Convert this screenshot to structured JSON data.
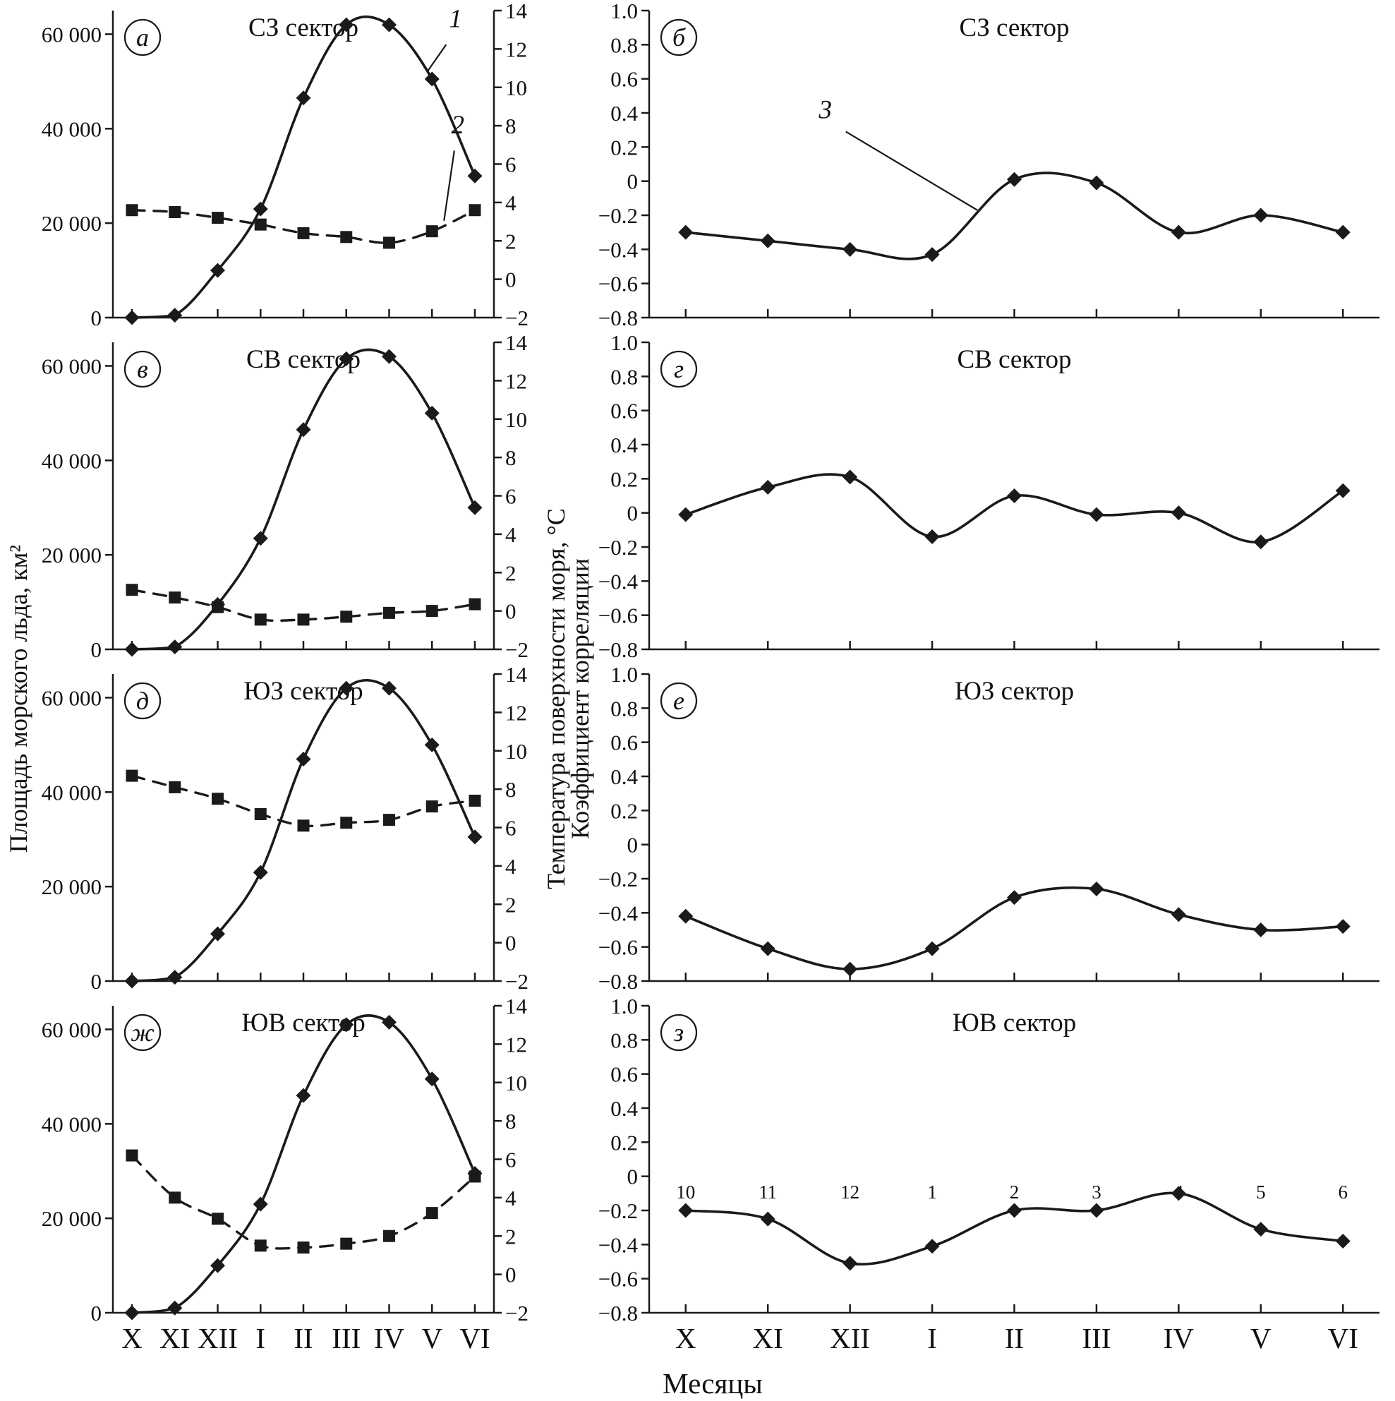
{
  "figure": {
    "left_axis_label": "Площадь морского льда, км²",
    "right_axis_label": "Температура поверхности моря, °C",
    "corr_axis_label": "Коэффициент корреляции",
    "x_axis_label": "Месяцы",
    "ink_color": "#1a1a1a"
  },
  "months": [
    "X",
    "XI",
    "XII",
    "I",
    "II",
    "III",
    "IV",
    "V",
    "VI"
  ],
  "chart_data": [
    {
      "type": "line",
      "panel": "а",
      "title": "СЗ сектор",
      "column": "left",
      "show_x_labels": false,
      "categories": [
        "X",
        "XI",
        "XII",
        "I",
        "II",
        "III",
        "IV",
        "V",
        "VI"
      ],
      "y_left": {
        "min": 0,
        "max": 65000,
        "ticks": [
          0,
          20000,
          40000,
          60000
        ],
        "tick_labels": [
          "0",
          "20 000",
          "40 000",
          "60 000"
        ]
      },
      "y_right": {
        "min": -2,
        "max": 14,
        "ticks": [
          14,
          12,
          10,
          8,
          6,
          4,
          2,
          0,
          -2
        ],
        "tick_labels": [
          "14",
          "12",
          "10",
          "8",
          "6",
          "4",
          "2",
          "0",
          "−2"
        ]
      },
      "series": [
        {
          "name": "1",
          "axis": "left",
          "marker": "diamond",
          "line": "solid",
          "values": [
            0,
            500,
            10000,
            23000,
            46500,
            62000,
            62000,
            50500,
            30000
          ]
        },
        {
          "name": "2",
          "axis": "right",
          "marker": "square",
          "line": "dashed",
          "values": [
            3.6,
            3.5,
            3.2,
            2.85,
            2.4,
            2.2,
            1.9,
            2.5,
            3.6
          ]
        }
      ],
      "annotations": [
        {
          "text": "1",
          "axis": "left",
          "tx": 7.55,
          "tv": 61500,
          "leader": [
            7.33,
            57800,
            6.9,
            52200
          ]
        },
        {
          "text": "2",
          "axis": "right",
          "tx": 7.6,
          "tv": 7.6,
          "leader": [
            7.52,
            6.7,
            7.28,
            3.05
          ]
        }
      ]
    },
    {
      "type": "line",
      "panel": "б",
      "title": "СЗ сектор",
      "column": "right",
      "show_x_labels": false,
      "categories": [
        "X",
        "XI",
        "XII",
        "I",
        "II",
        "III",
        "IV",
        "V",
        "VI"
      ],
      "y_left": {
        "min": -0.8,
        "max": 1.0,
        "ticks": [
          1.0,
          0.8,
          0.6,
          0.4,
          0.2,
          0,
          -0.2,
          -0.4,
          -0.6,
          -0.8
        ],
        "tick_labels": [
          "1.0",
          "0.8",
          "0.6",
          "0.4",
          "0.2",
          "0",
          "−0.2",
          "−0.4",
          "−0.6",
          "−0.8"
        ]
      },
      "series": [
        {
          "name": "3",
          "axis": "left",
          "marker": "diamond",
          "line": "solid",
          "values": [
            -0.3,
            -0.35,
            -0.4,
            -0.43,
            0.01,
            -0.01,
            -0.3,
            -0.2,
            -0.3
          ]
        }
      ],
      "annotations": [
        {
          "text": "3",
          "axis": "left",
          "tx": 1.7,
          "tv": 0.37,
          "leader": [
            1.95,
            0.29,
            3.55,
            -0.17
          ]
        }
      ]
    },
    {
      "type": "line",
      "panel": "в",
      "title": "СВ сектор",
      "column": "left",
      "show_x_labels": false,
      "categories": [
        "X",
        "XI",
        "XII",
        "I",
        "II",
        "III",
        "IV",
        "V",
        "VI"
      ],
      "y_left": {
        "min": 0,
        "max": 65000,
        "ticks": [
          0,
          20000,
          40000,
          60000
        ],
        "tick_labels": [
          "0",
          "20 000",
          "40 000",
          "60 000"
        ]
      },
      "y_right": {
        "min": -2,
        "max": 14,
        "ticks": [
          14,
          12,
          10,
          8,
          6,
          4,
          2,
          0,
          -2
        ],
        "tick_labels": [
          "14",
          "12",
          "10",
          "8",
          "6",
          "4",
          "2",
          "0",
          "−2"
        ]
      },
      "series": [
        {
          "name": "1",
          "axis": "left",
          "marker": "diamond",
          "line": "solid",
          "values": [
            0,
            500,
            9500,
            23500,
            46500,
            61500,
            62000,
            50000,
            30000
          ]
        },
        {
          "name": "2",
          "axis": "right",
          "marker": "square",
          "line": "dashed",
          "values": [
            1.1,
            0.7,
            0.2,
            -0.45,
            -0.45,
            -0.3,
            -0.1,
            0.0,
            0.35
          ]
        }
      ],
      "annotations": []
    },
    {
      "type": "line",
      "panel": "г",
      "title": "СВ сектор",
      "column": "right",
      "show_x_labels": false,
      "categories": [
        "X",
        "XI",
        "XII",
        "I",
        "II",
        "III",
        "IV",
        "V",
        "VI"
      ],
      "y_left": {
        "min": -0.8,
        "max": 1.0,
        "ticks": [
          1.0,
          0.8,
          0.6,
          0.4,
          0.2,
          0,
          -0.2,
          -0.4,
          -0.6,
          -0.8
        ],
        "tick_labels": [
          "1.0",
          "0.8",
          "0.6",
          "0.4",
          "0.2",
          "0",
          "−0.2",
          "−0.4",
          "−0.6",
          "−0.8"
        ]
      },
      "series": [
        {
          "name": "3",
          "axis": "left",
          "marker": "diamond",
          "line": "solid",
          "values": [
            -0.01,
            0.15,
            0.21,
            -0.14,
            0.1,
            -0.01,
            0.0,
            -0.17,
            0.13
          ]
        }
      ],
      "annotations": []
    },
    {
      "type": "line",
      "panel": "д",
      "title": "ЮЗ сектор",
      "column": "left",
      "show_x_labels": false,
      "categories": [
        "X",
        "XI",
        "XII",
        "I",
        "II",
        "III",
        "IV",
        "V",
        "VI"
      ],
      "y_left": {
        "min": 0,
        "max": 65000,
        "ticks": [
          0,
          20000,
          40000,
          60000
        ],
        "tick_labels": [
          "0",
          "20 000",
          "40 000",
          "60 000"
        ]
      },
      "y_right": {
        "min": -2,
        "max": 14,
        "ticks": [
          14,
          12,
          10,
          8,
          6,
          4,
          2,
          0,
          -2
        ],
        "tick_labels": [
          "14",
          "12",
          "10",
          "8",
          "6",
          "4",
          "2",
          "0",
          "−2"
        ]
      },
      "series": [
        {
          "name": "1",
          "axis": "left",
          "marker": "diamond",
          "line": "solid",
          "values": [
            0,
            800,
            10000,
            23000,
            47000,
            62000,
            62000,
            50000,
            30500
          ]
        },
        {
          "name": "2",
          "axis": "right",
          "marker": "square",
          "line": "dashed",
          "values": [
            8.7,
            8.1,
            7.5,
            6.7,
            6.1,
            6.25,
            6.4,
            7.1,
            7.4
          ]
        }
      ],
      "annotations": []
    },
    {
      "type": "line",
      "panel": "е",
      "title": "ЮЗ сектор",
      "column": "right",
      "show_x_labels": false,
      "categories": [
        "X",
        "XI",
        "XII",
        "I",
        "II",
        "III",
        "IV",
        "V",
        "VI"
      ],
      "y_left": {
        "min": -0.8,
        "max": 1.0,
        "ticks": [
          1.0,
          0.8,
          0.6,
          0.4,
          0.2,
          0,
          -0.2,
          -0.4,
          -0.6,
          -0.8
        ],
        "tick_labels": [
          "1.0",
          "0.8",
          "0.6",
          "0.4",
          "0.2",
          "0",
          "−0.2",
          "−0.4",
          "−0.6",
          "−0.8"
        ]
      },
      "series": [
        {
          "name": "3",
          "axis": "left",
          "marker": "diamond",
          "line": "solid",
          "values": [
            -0.42,
            -0.61,
            -0.73,
            -0.61,
            -0.31,
            -0.26,
            -0.41,
            -0.5,
            -0.48
          ]
        }
      ],
      "annotations": []
    },
    {
      "type": "line",
      "panel": "ж",
      "title": "ЮВ сектор",
      "column": "left",
      "show_x_labels": true,
      "categories": [
        "X",
        "XI",
        "XII",
        "I",
        "II",
        "III",
        "IV",
        "V",
        "VI"
      ],
      "y_left": {
        "min": 0,
        "max": 65000,
        "ticks": [
          0,
          20000,
          40000,
          60000
        ],
        "tick_labels": [
          "0",
          "20 000",
          "40 000",
          "60 000"
        ]
      },
      "y_right": {
        "min": -2,
        "max": 14,
        "ticks": [
          14,
          12,
          10,
          8,
          6,
          4,
          2,
          0,
          -2
        ],
        "tick_labels": [
          "14",
          "12",
          "10",
          "8",
          "6",
          "4",
          "2",
          "0",
          "−2"
        ]
      },
      "series": [
        {
          "name": "1",
          "axis": "left",
          "marker": "diamond",
          "line": "solid",
          "values": [
            0,
            1000,
            10000,
            23000,
            46000,
            61000,
            61500,
            49500,
            29500
          ]
        },
        {
          "name": "2",
          "axis": "right",
          "marker": "square",
          "line": "dashed",
          "values": [
            6.2,
            4.0,
            2.9,
            1.5,
            1.4,
            1.6,
            2.0,
            3.2,
            5.1
          ]
        }
      ],
      "annotations": []
    },
    {
      "type": "line",
      "panel": "з",
      "title": "ЮВ сектор",
      "column": "right",
      "show_x_labels": true,
      "categories": [
        "X",
        "XI",
        "XII",
        "I",
        "II",
        "III",
        "IV",
        "V",
        "VI"
      ],
      "y_left": {
        "min": -0.8,
        "max": 1.0,
        "ticks": [
          1.0,
          0.8,
          0.6,
          0.4,
          0.2,
          0,
          -0.2,
          -0.4,
          -0.6,
          -0.8
        ],
        "tick_labels": [
          "1.0",
          "0.8",
          "0.6",
          "0.4",
          "0.2",
          "0",
          "−0.2",
          "−0.4",
          "−0.6",
          "−0.8"
        ]
      },
      "series": [
        {
          "name": "3",
          "axis": "left",
          "marker": "diamond",
          "line": "solid",
          "values": [
            -0.2,
            -0.25,
            -0.51,
            -0.41,
            -0.2,
            -0.2,
            -0.1,
            -0.31,
            -0.38
          ]
        }
      ],
      "point_labels": [
        "10",
        "11",
        "12",
        "1",
        "2",
        "3",
        "4",
        "5",
        "6"
      ],
      "point_labels_value": -0.13,
      "annotations": []
    }
  ]
}
